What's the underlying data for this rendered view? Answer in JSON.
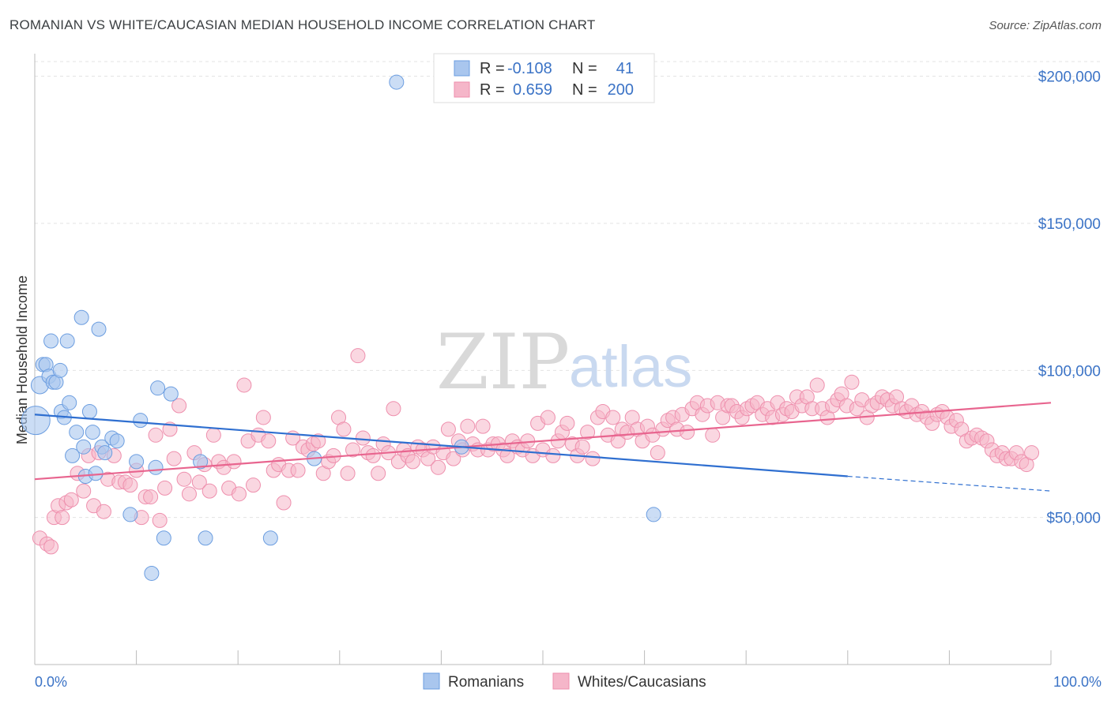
{
  "header": {
    "title": "ROMANIAN VS WHITE/CAUCASIAN MEDIAN HOUSEHOLD INCOME CORRELATION CHART",
    "source": "Source: ZipAtlas.com"
  },
  "watermark": {
    "zip": "ZIP",
    "atlas": "atlas"
  },
  "legend_top": {
    "r_label": "R =",
    "n_label": "N =",
    "rows": [
      {
        "r": "-0.108",
        "n": "41",
        "color": "#a9c6ee"
      },
      {
        "r": "0.659",
        "n": "200",
        "color": "#f5b6c9"
      }
    ]
  },
  "chart_data": {
    "type": "scatter",
    "title": "ROMANIAN VS WHITE/CAUCASIAN MEDIAN HOUSEHOLD INCOME CORRELATION CHART",
    "xlabel": "",
    "ylabel": "Median Household Income",
    "xlim": [
      0,
      100
    ],
    "ylim": [
      0,
      205000
    ],
    "x_tick_labels": [
      "0.0%",
      "100.0%"
    ],
    "y_ticks": [
      50000,
      100000,
      150000,
      200000
    ],
    "y_tick_labels": [
      "$50,000",
      "$100,000",
      "$150,000",
      "$200,000"
    ],
    "grid": "horizontal dashed",
    "legend_position": "top-center and bottom",
    "series": [
      {
        "name": "Romanians",
        "color": "#6b9de0",
        "fill": "#a9c6ee",
        "trend": {
          "x0": 0,
          "y0": 85000,
          "x1": 80,
          "y1": 64000,
          "x_dash_end": 100,
          "y_dash_end": 59000
        },
        "points": [
          [
            0.1,
            83000,
            18
          ],
          [
            0.5,
            95000,
            11
          ],
          [
            0.8,
            102000,
            9
          ],
          [
            1.1,
            102000,
            9
          ],
          [
            1.4,
            98000,
            9
          ],
          [
            1.6,
            110000,
            9
          ],
          [
            1.8,
            96000,
            9
          ],
          [
            2.1,
            96000,
            9
          ],
          [
            2.5,
            100000,
            9
          ],
          [
            2.6,
            86000,
            9
          ],
          [
            2.9,
            84000,
            9
          ],
          [
            3.2,
            110000,
            9
          ],
          [
            3.4,
            89000,
            9
          ],
          [
            3.7,
            71000,
            9
          ],
          [
            4.1,
            79000,
            9
          ],
          [
            4.6,
            118000,
            9
          ],
          [
            4.8,
            74000,
            9
          ],
          [
            5.0,
            64000,
            9
          ],
          [
            5.4,
            86000,
            9
          ],
          [
            5.7,
            79000,
            9
          ],
          [
            6.0,
            65000,
            9
          ],
          [
            6.3,
            114000,
            9
          ],
          [
            6.6,
            74000,
            9
          ],
          [
            6.9,
            72000,
            9
          ],
          [
            7.6,
            77000,
            9
          ],
          [
            8.1,
            76000,
            9
          ],
          [
            9.4,
            51000,
            9
          ],
          [
            10.0,
            69000,
            9
          ],
          [
            10.4,
            83000,
            9
          ],
          [
            11.5,
            31000,
            9
          ],
          [
            11.9,
            67000,
            9
          ],
          [
            12.1,
            94000,
            9
          ],
          [
            12.7,
            43000,
            9
          ],
          [
            13.4,
            92000,
            9
          ],
          [
            16.3,
            69000,
            9
          ],
          [
            16.8,
            43000,
            9
          ],
          [
            23.2,
            43000,
            9
          ],
          [
            27.5,
            70000,
            9
          ],
          [
            35.6,
            198000,
            9
          ],
          [
            60.9,
            51000,
            9
          ],
          [
            42.0,
            74000,
            9
          ]
        ]
      },
      {
        "name": "Whites/Caucasians",
        "color": "#ee8fad",
        "fill": "#f5b6c9",
        "trend": {
          "x0": 0,
          "y0": 63000,
          "x1": 100,
          "y1": 89000
        },
        "points": [
          [
            0.5,
            43000
          ],
          [
            1.2,
            41000
          ],
          [
            1.6,
            40000
          ],
          [
            1.9,
            50000
          ],
          [
            2.3,
            54000
          ],
          [
            2.7,
            50000
          ],
          [
            3.1,
            55000
          ],
          [
            3.6,
            56000
          ],
          [
            4.2,
            65000
          ],
          [
            4.8,
            59000
          ],
          [
            5.3,
            71000
          ],
          [
            5.8,
            54000
          ],
          [
            6.3,
            72000
          ],
          [
            6.8,
            52000
          ],
          [
            7.2,
            63000
          ],
          [
            7.8,
            71000
          ],
          [
            8.3,
            62000
          ],
          [
            8.9,
            62000
          ],
          [
            9.4,
            61000
          ],
          [
            10.0,
            66000
          ],
          [
            10.5,
            50000
          ],
          [
            10.9,
            57000
          ],
          [
            11.4,
            57000
          ],
          [
            11.9,
            78000
          ],
          [
            12.3,
            49000
          ],
          [
            12.8,
            60000
          ],
          [
            13.3,
            80000
          ],
          [
            13.7,
            70000
          ],
          [
            14.2,
            88000
          ],
          [
            14.7,
            63000
          ],
          [
            15.2,
            58000
          ],
          [
            15.7,
            72000
          ],
          [
            16.2,
            62000
          ],
          [
            16.7,
            68000
          ],
          [
            17.2,
            59000
          ],
          [
            17.6,
            78000
          ],
          [
            18.1,
            69000
          ],
          [
            18.6,
            67000
          ],
          [
            19.1,
            60000
          ],
          [
            19.6,
            69000
          ],
          [
            20.1,
            58000
          ],
          [
            20.6,
            95000
          ],
          [
            21.0,
            76000
          ],
          [
            21.5,
            61000
          ],
          [
            22.0,
            78000
          ],
          [
            22.5,
            84000
          ],
          [
            23.0,
            76000
          ],
          [
            23.5,
            66000
          ],
          [
            24.0,
            68000
          ],
          [
            24.5,
            55000
          ],
          [
            25.0,
            66000
          ],
          [
            25.4,
            77000
          ],
          [
            25.9,
            66000
          ],
          [
            26.4,
            74000
          ],
          [
            26.9,
            73000
          ],
          [
            27.4,
            75000
          ],
          [
            27.9,
            76000
          ],
          [
            28.4,
            65000
          ],
          [
            28.9,
            69000
          ],
          [
            29.4,
            71000
          ],
          [
            29.9,
            84000
          ],
          [
            30.4,
            80000
          ],
          [
            30.8,
            65000
          ],
          [
            31.3,
            73000
          ],
          [
            31.8,
            105000
          ],
          [
            32.3,
            77000
          ],
          [
            32.8,
            72000
          ],
          [
            33.3,
            71000
          ],
          [
            33.8,
            65000
          ],
          [
            34.3,
            75000
          ],
          [
            34.8,
            72000
          ],
          [
            35.3,
            87000
          ],
          [
            35.8,
            69000
          ],
          [
            36.3,
            73000
          ],
          [
            36.7,
            71000
          ],
          [
            37.2,
            69000
          ],
          [
            37.7,
            74000
          ],
          [
            38.2,
            73000
          ],
          [
            38.7,
            70000
          ],
          [
            39.2,
            74000
          ],
          [
            39.7,
            67000
          ],
          [
            40.2,
            72000
          ],
          [
            40.7,
            80000
          ],
          [
            41.2,
            70000
          ],
          [
            41.7,
            76000
          ],
          [
            42.1,
            73000
          ],
          [
            42.6,
            81000
          ],
          [
            43.1,
            75000
          ],
          [
            43.6,
            73000
          ],
          [
            44.1,
            81000
          ],
          [
            44.6,
            73000
          ],
          [
            45.1,
            75000
          ],
          [
            45.6,
            75000
          ],
          [
            46.1,
            73000
          ],
          [
            46.5,
            71000
          ],
          [
            47.0,
            76000
          ],
          [
            47.5,
            74000
          ],
          [
            48.0,
            73000
          ],
          [
            48.5,
            76000
          ],
          [
            49.0,
            71000
          ],
          [
            49.5,
            82000
          ],
          [
            50.0,
            73000
          ],
          [
            50.5,
            84000
          ],
          [
            51.0,
            71000
          ],
          [
            51.5,
            76000
          ],
          [
            51.9,
            79000
          ],
          [
            52.4,
            82000
          ],
          [
            52.9,
            75000
          ],
          [
            53.4,
            71000
          ],
          [
            53.9,
            74000
          ],
          [
            54.4,
            79000
          ],
          [
            54.9,
            70000
          ],
          [
            55.4,
            84000
          ],
          [
            55.9,
            86000
          ],
          [
            56.4,
            78000
          ],
          [
            56.9,
            84000
          ],
          [
            57.4,
            76000
          ],
          [
            57.8,
            80000
          ],
          [
            58.3,
            79000
          ],
          [
            58.8,
            84000
          ],
          [
            59.3,
            80000
          ],
          [
            59.8,
            76000
          ],
          [
            60.3,
            81000
          ],
          [
            60.8,
            78000
          ],
          [
            61.3,
            72000
          ],
          [
            61.8,
            80000
          ],
          [
            62.3,
            83000
          ],
          [
            62.8,
            84000
          ],
          [
            63.2,
            80000
          ],
          [
            63.7,
            85000
          ],
          [
            64.2,
            79000
          ],
          [
            64.7,
            87000
          ],
          [
            65.2,
            89000
          ],
          [
            65.7,
            85000
          ],
          [
            66.2,
            88000
          ],
          [
            66.7,
            78000
          ],
          [
            67.2,
            89000
          ],
          [
            67.7,
            84000
          ],
          [
            68.2,
            88000
          ],
          [
            68.6,
            88000
          ],
          [
            69.1,
            86000
          ],
          [
            69.6,
            84000
          ],
          [
            70.1,
            87000
          ],
          [
            70.6,
            88000
          ],
          [
            71.1,
            89000
          ],
          [
            71.6,
            85000
          ],
          [
            72.1,
            87000
          ],
          [
            72.6,
            84000
          ],
          [
            73.1,
            89000
          ],
          [
            73.6,
            85000
          ],
          [
            74.0,
            87000
          ],
          [
            74.5,
            86000
          ],
          [
            75.0,
            91000
          ],
          [
            75.5,
            88000
          ],
          [
            76.0,
            91000
          ],
          [
            76.5,
            87000
          ],
          [
            77.0,
            95000
          ],
          [
            77.5,
            87000
          ],
          [
            78.0,
            84000
          ],
          [
            78.5,
            88000
          ],
          [
            79.0,
            90000
          ],
          [
            79.4,
            92000
          ],
          [
            79.9,
            88000
          ],
          [
            80.4,
            96000
          ],
          [
            80.9,
            87000
          ],
          [
            81.4,
            90000
          ],
          [
            81.9,
            84000
          ],
          [
            82.4,
            88000
          ],
          [
            82.9,
            89000
          ],
          [
            83.4,
            91000
          ],
          [
            83.9,
            90000
          ],
          [
            84.4,
            88000
          ],
          [
            84.8,
            91000
          ],
          [
            85.3,
            87000
          ],
          [
            85.8,
            86000
          ],
          [
            86.3,
            88000
          ],
          [
            86.8,
            85000
          ],
          [
            87.3,
            86000
          ],
          [
            87.8,
            84000
          ],
          [
            88.3,
            82000
          ],
          [
            88.8,
            85000
          ],
          [
            89.3,
            86000
          ],
          [
            89.8,
            84000
          ],
          [
            90.2,
            81000
          ],
          [
            90.7,
            83000
          ],
          [
            91.2,
            80000
          ],
          [
            91.7,
            76000
          ],
          [
            92.2,
            77000
          ],
          [
            92.7,
            78000
          ],
          [
            93.2,
            77000
          ],
          [
            93.7,
            76000
          ],
          [
            94.2,
            73000
          ],
          [
            94.7,
            71000
          ],
          [
            95.2,
            72000
          ],
          [
            95.6,
            70000
          ],
          [
            96.1,
            70000
          ],
          [
            96.6,
            72000
          ],
          [
            97.1,
            69000
          ],
          [
            97.6,
            68000
          ],
          [
            98.1,
            72000
          ]
        ]
      }
    ]
  },
  "legend_bottom": {
    "items": [
      {
        "label": "Romanians",
        "color": "#a9c6ee",
        "stroke": "#6b9de0"
      },
      {
        "label": "Whites/Caucasians",
        "color": "#f5b6c9",
        "stroke": "#ee8fad"
      }
    ]
  }
}
